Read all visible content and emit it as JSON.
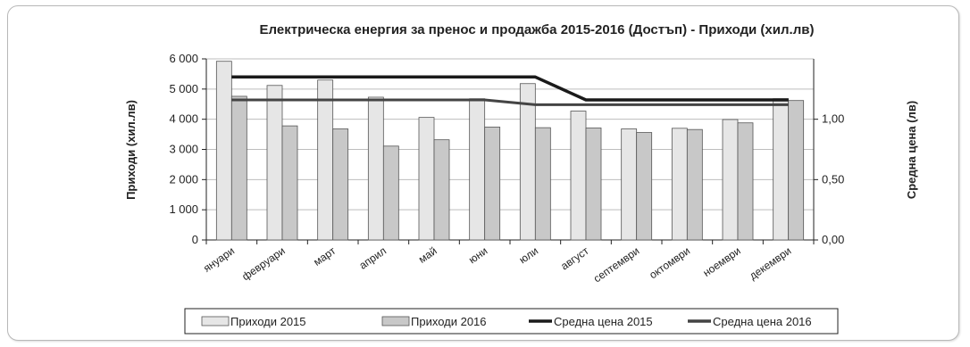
{
  "chart_data": {
    "type": "bar",
    "title": "Електрическа енергия за пренос и продажба 2015-2016 (Достъп) - Приходи (хил.лв)",
    "ylabel": "Приходи (хил.лв)",
    "y2label": "Средна цена (лв)",
    "ylim": [
      0,
      6000
    ],
    "y2lim": [
      0,
      1.5
    ],
    "yticks": [
      "0",
      "1 000",
      "2 000",
      "3 000",
      "4 000",
      "5 000",
      "6 000"
    ],
    "y2ticks": [
      "0,00",
      "0,50",
      "1,00"
    ],
    "categories": [
      "януари",
      "февруари",
      "март",
      "април",
      "май",
      "юни",
      "юли",
      "август",
      "септември",
      "октомври",
      "ноември",
      "декември"
    ],
    "series": [
      {
        "name": "Приходи 2015",
        "kind": "bar",
        "color": "#e6e6e6",
        "values": [
          5920,
          5120,
          5300,
          4730,
          4060,
          4680,
          5180,
          4270,
          3680,
          3700,
          3990,
          4680
        ]
      },
      {
        "name": "Приходи 2016",
        "kind": "bar",
        "color": "#c8c8c8",
        "values": [
          4760,
          3780,
          3680,
          3110,
          3320,
          3740,
          3720,
          3710,
          3560,
          3660,
          3880,
          4620
        ]
      },
      {
        "name": "Средна цена 2015",
        "kind": "line",
        "color": "#1a1a1a",
        "values": [
          1.35,
          1.35,
          1.35,
          1.35,
          1.35,
          1.35,
          1.35,
          1.16,
          1.16,
          1.16,
          1.16,
          1.16
        ]
      },
      {
        "name": "Средна цена 2016",
        "kind": "line",
        "color": "#444444",
        "values": [
          1.16,
          1.16,
          1.16,
          1.16,
          1.16,
          1.16,
          1.12,
          1.12,
          1.12,
          1.12,
          1.12,
          1.12
        ]
      }
    ],
    "grid": true,
    "legend": "bottom"
  }
}
